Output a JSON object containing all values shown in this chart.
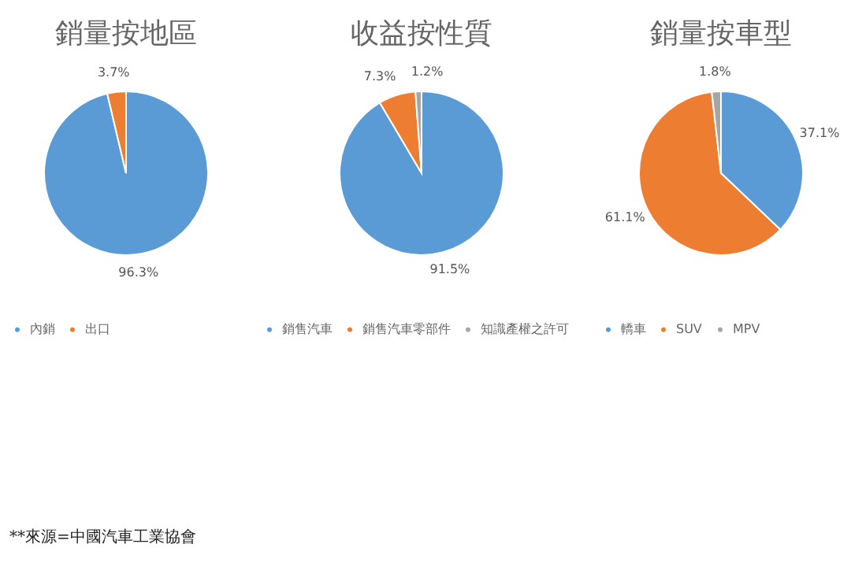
{
  "chart_data": [
    {
      "type": "pie",
      "title": "銷量按地區",
      "categories": [
        "內銷",
        "出口"
      ],
      "values": [
        96.3,
        3.7
      ],
      "colors": [
        "#5b9bd5",
        "#ed7d31"
      ],
      "value_labels": [
        "96.3%",
        "3.7%"
      ],
      "legend": "bottom",
      "annotations": [
        "**來源=中國汽車工業協會"
      ]
    },
    {
      "type": "pie",
      "title": "收益按性質",
      "categories": [
        "銷售汽車",
        "銷售汽車零部件",
        "知識產權之許可"
      ],
      "values": [
        91.5,
        7.3,
        1.2
      ],
      "colors": [
        "#5b9bd5",
        "#ed7d31",
        "#a5a5a5"
      ],
      "value_labels": [
        "91.5%",
        "7.3%",
        "1.2%"
      ],
      "legend": "bottom"
    },
    {
      "type": "pie",
      "title": "銷量按車型",
      "categories": [
        "轎車",
        "SUV",
        "MPV"
      ],
      "values": [
        37.1,
        61.1,
        1.8
      ],
      "colors": [
        "#5b9bd5",
        "#ed7d31",
        "#a5a5a5"
      ],
      "value_labels": [
        "37.1%",
        "61.1%",
        "1.8%"
      ],
      "legend": "bottom"
    }
  ]
}
